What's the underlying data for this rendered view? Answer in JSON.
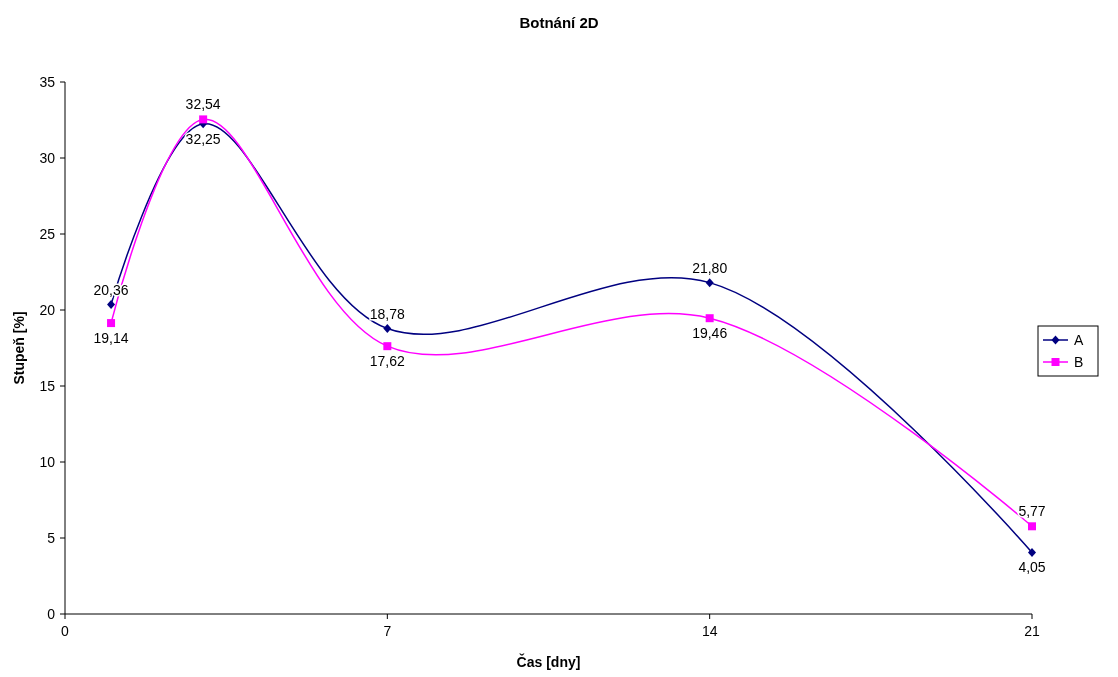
{
  "chart_data": {
    "type": "line",
    "title": "Botnání 2D",
    "xlabel": "Čas [dny]",
    "ylabel": "Stupeň [%]",
    "x": [
      1,
      3,
      7,
      14,
      21
    ],
    "series": [
      {
        "name": "A",
        "color": "#000080",
        "marker": "diamond",
        "values": [
          20.36,
          32.25,
          18.78,
          21.8,
          4.05
        ],
        "value_labels": [
          "20,36",
          "32,25",
          "18,78",
          "21,80",
          "4,05"
        ]
      },
      {
        "name": "B",
        "color": "#ff00ff",
        "marker": "square",
        "values": [
          19.14,
          32.54,
          17.62,
          19.46,
          5.77
        ],
        "value_labels": [
          "19,14",
          "32,54",
          "17,62",
          "19,46",
          "5,77"
        ]
      }
    ],
    "xlim": [
      0,
      21
    ],
    "xticks": [
      0,
      7,
      14,
      21
    ],
    "ylim": [
      0,
      35
    ],
    "yticks": [
      0,
      5,
      10,
      15,
      20,
      25,
      30,
      35
    ],
    "grid": false,
    "legend": "right"
  }
}
